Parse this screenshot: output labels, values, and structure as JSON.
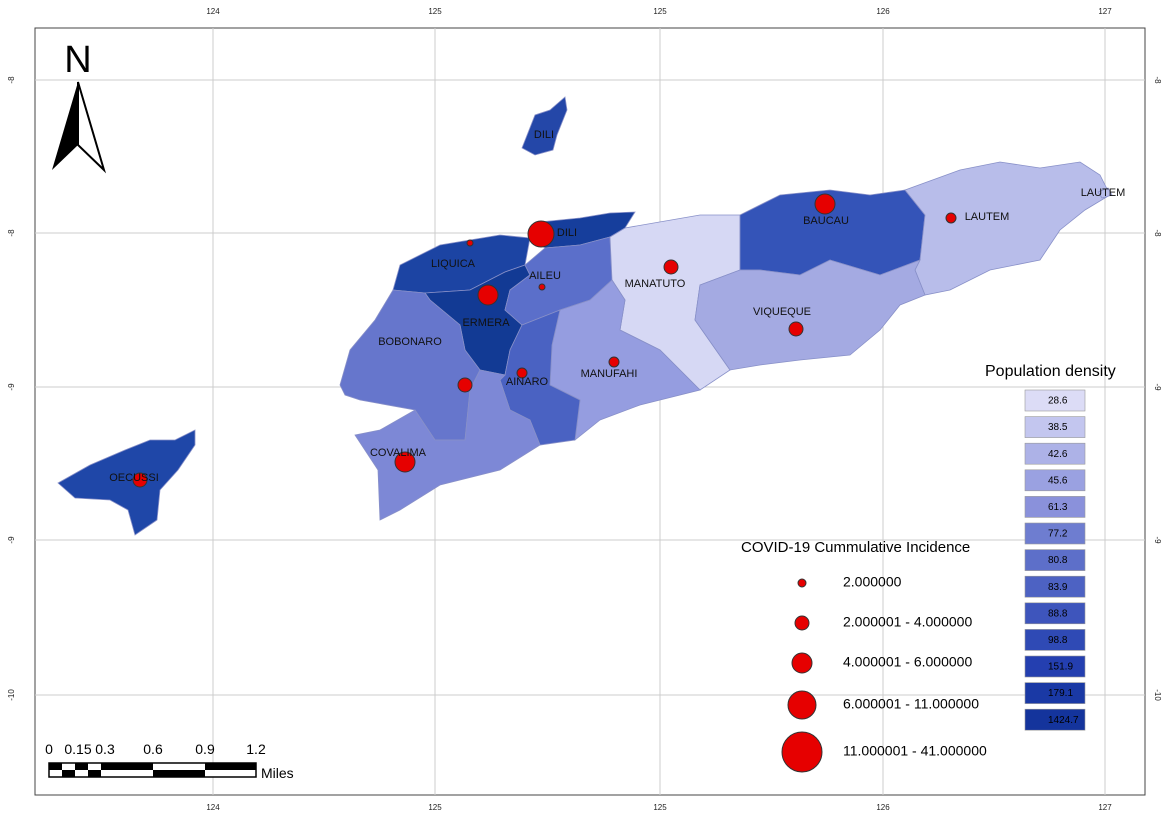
{
  "north": "N",
  "grid": {
    "top": [
      124,
      125,
      125,
      126,
      127
    ],
    "bottom": [
      124,
      125,
      125,
      126,
      127
    ],
    "left": [
      -8,
      -8,
      -9,
      -9,
      -10
    ],
    "right": [
      -8,
      -8,
      -9,
      -9,
      -10
    ]
  },
  "regions": [
    "DILI",
    "LIQUICA",
    "DILI",
    "AILEU",
    "MANATUTO",
    "BAUCAU",
    "LAUTEM",
    "LAUTEM",
    "ERMERA",
    "BOBONARO",
    "VIQUEQUE",
    "AINARO",
    "MANUFAHI",
    "COVALIMA",
    "OECUSSI"
  ],
  "density_legend": {
    "title": "Population density",
    "classes": [
      {
        "label": 28.6,
        "color": "#dcdcf6"
      },
      {
        "label": 38.5,
        "color": "#c3c6ef"
      },
      {
        "label": 42.6,
        "color": "#adb2e7"
      },
      {
        "label": 45.6,
        "color": "#9aa1e1"
      },
      {
        "label": 61.3,
        "color": "#8a91db"
      },
      {
        "label": 77.2,
        "color": "#6e7dd0"
      },
      {
        "label": 80.8,
        "color": "#5d6fc9"
      },
      {
        "label": 83.9,
        "color": "#4d62c3"
      },
      {
        "label": 88.8,
        "color": "#3e55bc"
      },
      {
        "label": 98.8,
        "color": "#2f4ab5"
      },
      {
        "label": 151.9,
        "color": "#243fb0"
      },
      {
        "label": 179.1,
        "color": "#1a39a5"
      },
      {
        "label": 1424.7,
        "color": "#14349c"
      }
    ]
  },
  "incidence_legend": {
    "title": "COVID-19 Cummulative Incidence",
    "classes": [
      "2.000000",
      "2.000001 - 4.000000",
      "4.000001 - 6.000000",
      "6.000001 - 11.000000",
      "11.000001 - 41.000000"
    ]
  },
  "scale_bar": {
    "labels": [
      0,
      0.15,
      0.3,
      0.6,
      0.9,
      1.2
    ],
    "unit": "Miles"
  }
}
